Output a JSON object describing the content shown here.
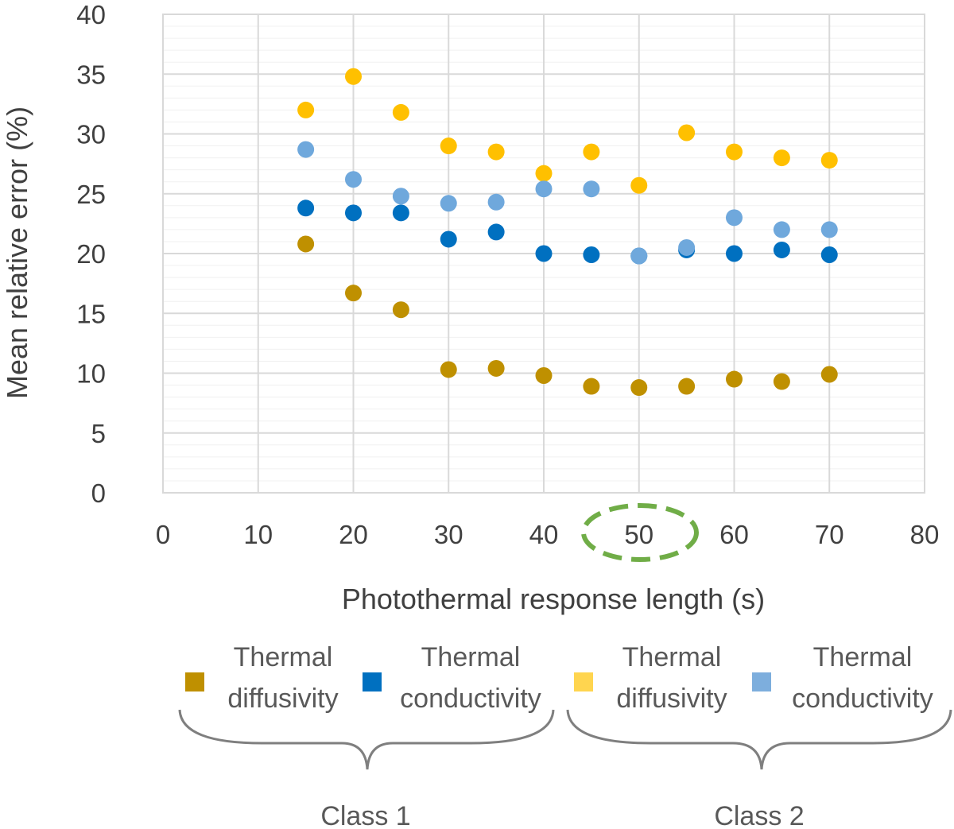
{
  "chart_data": {
    "type": "scatter",
    "xlabel": "Photothermal response length (s)",
    "ylabel": "Mean relative error (%)",
    "xlim": [
      0,
      80
    ],
    "ylim": [
      0,
      40
    ],
    "x_ticks": [
      "0",
      "10",
      "20",
      "30",
      "40",
      "50",
      "60",
      "70",
      "80"
    ],
    "y_ticks": [
      "0",
      "5",
      "10",
      "15",
      "20",
      "25",
      "30",
      "35",
      "40"
    ],
    "grid": "major and minor",
    "highlighted_x_tick": "50",
    "highlight_color": "#70AD47",
    "series": [
      {
        "name": "Thermal diffusivity",
        "class": "Class 1",
        "color": "#BF9000",
        "points": [
          [
            15,
            20.8
          ],
          [
            20,
            16.7
          ],
          [
            25,
            15.3
          ],
          [
            30,
            10.3
          ],
          [
            35,
            10.4
          ],
          [
            40,
            9.8
          ],
          [
            45,
            8.9
          ],
          [
            50,
            8.8
          ],
          [
            55,
            8.9
          ],
          [
            60,
            9.5
          ],
          [
            65,
            9.3
          ],
          [
            70,
            9.9
          ]
        ]
      },
      {
        "name": "Thermal conductivity",
        "class": "Class 1",
        "color": "#0070C0",
        "points": [
          [
            15,
            23.8
          ],
          [
            20,
            23.4
          ],
          [
            25,
            23.4
          ],
          [
            30,
            21.2
          ],
          [
            35,
            21.8
          ],
          [
            40,
            20.0
          ],
          [
            45,
            19.9
          ],
          [
            50,
            19.8
          ],
          [
            55,
            20.3
          ],
          [
            60,
            20.0
          ],
          [
            65,
            20.3
          ],
          [
            70,
            19.9
          ]
        ]
      },
      {
        "name": "Thermal diffusivity",
        "class": "Class 2",
        "color": "#FFC000",
        "points": [
          [
            15,
            32.0
          ],
          [
            20,
            34.8
          ],
          [
            25,
            31.8
          ],
          [
            30,
            29.0
          ],
          [
            35,
            28.5
          ],
          [
            40,
            26.7
          ],
          [
            45,
            28.5
          ],
          [
            50,
            25.7
          ],
          [
            55,
            30.1
          ],
          [
            60,
            28.5
          ],
          [
            65,
            28.0
          ],
          [
            70,
            27.8
          ]
        ]
      },
      {
        "name": "Thermal conductivity",
        "class": "Class 2",
        "color": "#6FA8DC",
        "points": [
          [
            15,
            28.7
          ],
          [
            20,
            26.2
          ],
          [
            25,
            24.8
          ],
          [
            30,
            24.2
          ],
          [
            35,
            24.3
          ],
          [
            40,
            25.4
          ],
          [
            45,
            25.4
          ],
          [
            50,
            19.8
          ],
          [
            55,
            20.5
          ],
          [
            60,
            23.0
          ],
          [
            65,
            22.0
          ],
          [
            70,
            22.0
          ]
        ]
      }
    ],
    "legend": {
      "placement": "bottom",
      "items": [
        {
          "line1": "Thermal",
          "line2": "diffusivity",
          "color": "#BF9000"
        },
        {
          "line1": "Thermal",
          "line2": "conductivity",
          "color": "#0070C0"
        },
        {
          "line1": "Thermal",
          "line2": "diffusivity",
          "color": "#FFD54F"
        },
        {
          "line1": "Thermal",
          "line2": "conductivity",
          "color": "#7DAEDD"
        }
      ],
      "groups": [
        "Class 1",
        "Class 2"
      ]
    }
  }
}
